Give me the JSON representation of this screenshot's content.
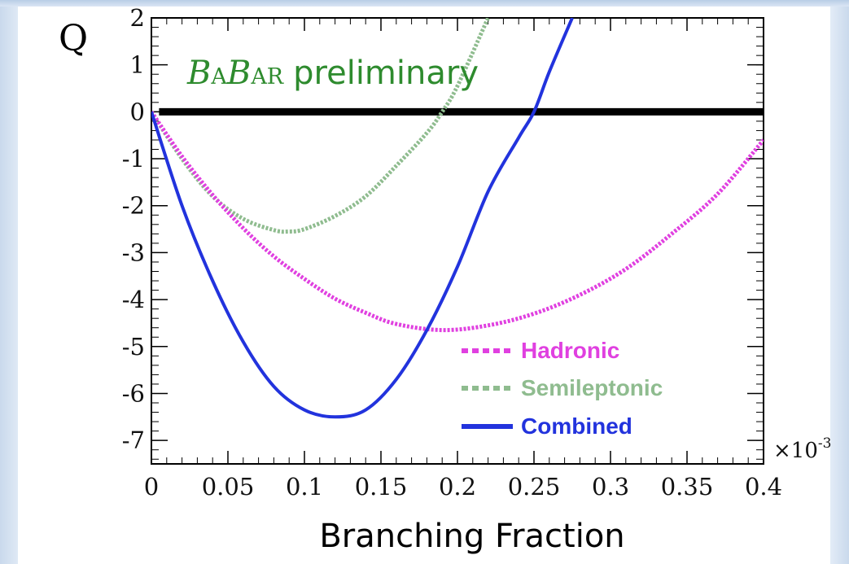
{
  "chart_data": {
    "type": "line",
    "title": "",
    "xlabel": "Branching Fraction",
    "ylabel": "Q",
    "x_scale_label": "×10",
    "x_scale_exponent": "-3",
    "xlim": [
      0,
      0.4
    ],
    "ylim": [
      -7.5,
      2
    ],
    "x_ticks": [
      "0",
      "0.05",
      "0.1",
      "0.15",
      "0.2",
      "0.25",
      "0.3",
      "0.35",
      "0.4"
    ],
    "x_tick_values": [
      0,
      0.05,
      0.1,
      0.15,
      0.2,
      0.25,
      0.3,
      0.35,
      0.4
    ],
    "y_ticks": [
      "2",
      "1",
      "0",
      "-1",
      "-2",
      "-3",
      "-4",
      "-5",
      "-6",
      "-7"
    ],
    "y_tick_values": [
      2,
      1,
      0,
      -1,
      -2,
      -3,
      -4,
      -5,
      -6,
      -7
    ],
    "reference_line": {
      "y": 0,
      "x_from": 0.005,
      "x_to": 0.4,
      "color": "#000000"
    },
    "series": [
      {
        "name": "Hadronic",
        "color": "#e040e0",
        "style": "dotted",
        "x": [
          0,
          0.02,
          0.04,
          0.06,
          0.08,
          0.1,
          0.12,
          0.14,
          0.16,
          0.19,
          0.22,
          0.25,
          0.28,
          0.31,
          0.34,
          0.37,
          0.4
        ],
        "y": [
          0,
          -0.95,
          -1.77,
          -2.48,
          -3.08,
          -3.56,
          -3.98,
          -4.28,
          -4.52,
          -4.65,
          -4.55,
          -4.3,
          -3.9,
          -3.35,
          -2.6,
          -1.75,
          -0.6
        ]
      },
      {
        "name": "Semileptonic",
        "color": "#8fbc8f",
        "style": "dotted",
        "x": [
          0,
          0.02,
          0.04,
          0.06,
          0.08,
          0.09,
          0.1,
          0.12,
          0.14,
          0.16,
          0.18,
          0.19,
          0.2,
          0.22
        ],
        "y": [
          0,
          -1.0,
          -1.8,
          -2.28,
          -2.52,
          -2.55,
          -2.5,
          -2.22,
          -1.8,
          -1.15,
          -0.45,
          0,
          0.55,
          2.0
        ]
      },
      {
        "name": "Combined",
        "color": "#2233dd",
        "style": "solid",
        "x": [
          0,
          0.02,
          0.04,
          0.06,
          0.08,
          0.1,
          0.12,
          0.14,
          0.16,
          0.18,
          0.2,
          0.22,
          0.24,
          0.25,
          0.26,
          0.275
        ],
        "y": [
          0,
          -2.0,
          -3.6,
          -4.9,
          -5.85,
          -6.35,
          -6.5,
          -6.35,
          -5.7,
          -4.65,
          -3.3,
          -1.7,
          -0.55,
          0,
          0.85,
          2.0
        ]
      }
    ],
    "legend": {
      "placement": "bottom-right"
    },
    "annotation": {
      "prefix_1": "B",
      "prefix_2": "A",
      "prefix_3": "B",
      "prefix_4": "AR",
      "text": "preliminary"
    }
  }
}
